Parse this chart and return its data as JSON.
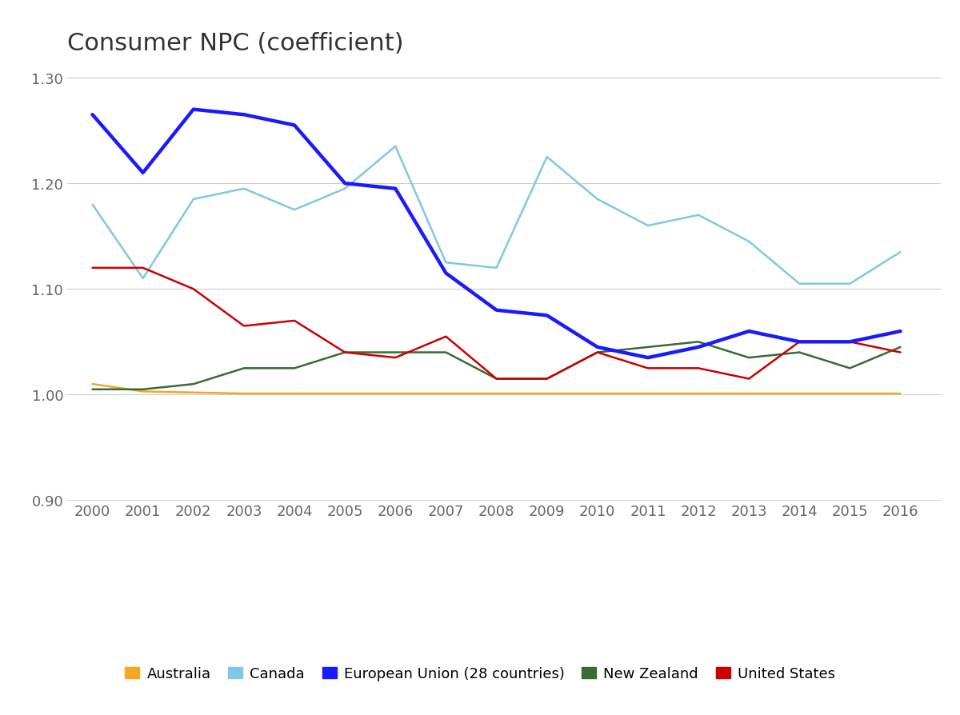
{
  "title": "Consumer NPC (coefficient)",
  "years": [
    2000,
    2001,
    2002,
    2003,
    2004,
    2005,
    2006,
    2007,
    2008,
    2009,
    2010,
    2011,
    2012,
    2013,
    2014,
    2015,
    2016
  ],
  "series": {
    "Australia": {
      "values": [
        1.01,
        1.003,
        1.002,
        1.001,
        1.001,
        1.001,
        1.001,
        1.001,
        1.001,
        1.001,
        1.001,
        1.001,
        1.001,
        1.001,
        1.001,
        1.001,
        1.001
      ],
      "color": "#F5A623",
      "linewidth": 1.8,
      "zorder": 2
    },
    "Canada": {
      "values": [
        1.18,
        1.11,
        1.185,
        1.195,
        1.175,
        1.195,
        1.235,
        1.125,
        1.12,
        1.225,
        1.185,
        1.16,
        1.17,
        1.145,
        1.105,
        1.105,
        1.135
      ],
      "color": "#7EC8E3",
      "linewidth": 1.8,
      "zorder": 3
    },
    "European Union (28 countries)": {
      "values": [
        1.265,
        1.21,
        1.27,
        1.265,
        1.255,
        1.2,
        1.195,
        1.115,
        1.08,
        1.075,
        1.045,
        1.035,
        1.045,
        1.06,
        1.05,
        1.05,
        1.06
      ],
      "color": "#1a1aff",
      "linewidth": 3.2,
      "zorder": 5
    },
    "New Zealand": {
      "values": [
        1.005,
        1.005,
        1.01,
        1.025,
        1.025,
        1.04,
        1.04,
        1.04,
        1.015,
        1.015,
        1.04,
        1.045,
        1.05,
        1.035,
        1.04,
        1.025,
        1.045
      ],
      "color": "#3A6B35",
      "linewidth": 1.8,
      "zorder": 2
    },
    "United States": {
      "values": [
        1.12,
        1.12,
        1.1,
        1.065,
        1.07,
        1.04,
        1.035,
        1.055,
        1.015,
        1.015,
        1.04,
        1.025,
        1.025,
        1.015,
        1.05,
        1.05,
        1.04
      ],
      "color": "#CC0000",
      "linewidth": 1.8,
      "zorder": 4
    }
  },
  "ylim": [
    0.9,
    1.32
  ],
  "yticks": [
    0.9,
    1.0,
    1.1,
    1.2,
    1.3
  ],
  "xlim": [
    1999.5,
    2016.8
  ],
  "background_color": "#ffffff",
  "grid_color": "#cccccc",
  "title_fontsize": 22,
  "tick_fontsize": 13,
  "legend_fontsize": 13,
  "legend_colors": [
    "#F5A623",
    "#7EC8E3",
    "#1a1aff",
    "#3A6B35",
    "#CC0000"
  ],
  "legend_labels": [
    "Australia",
    "Canada",
    "European Union (28 countries)",
    "New Zealand",
    "United States"
  ]
}
